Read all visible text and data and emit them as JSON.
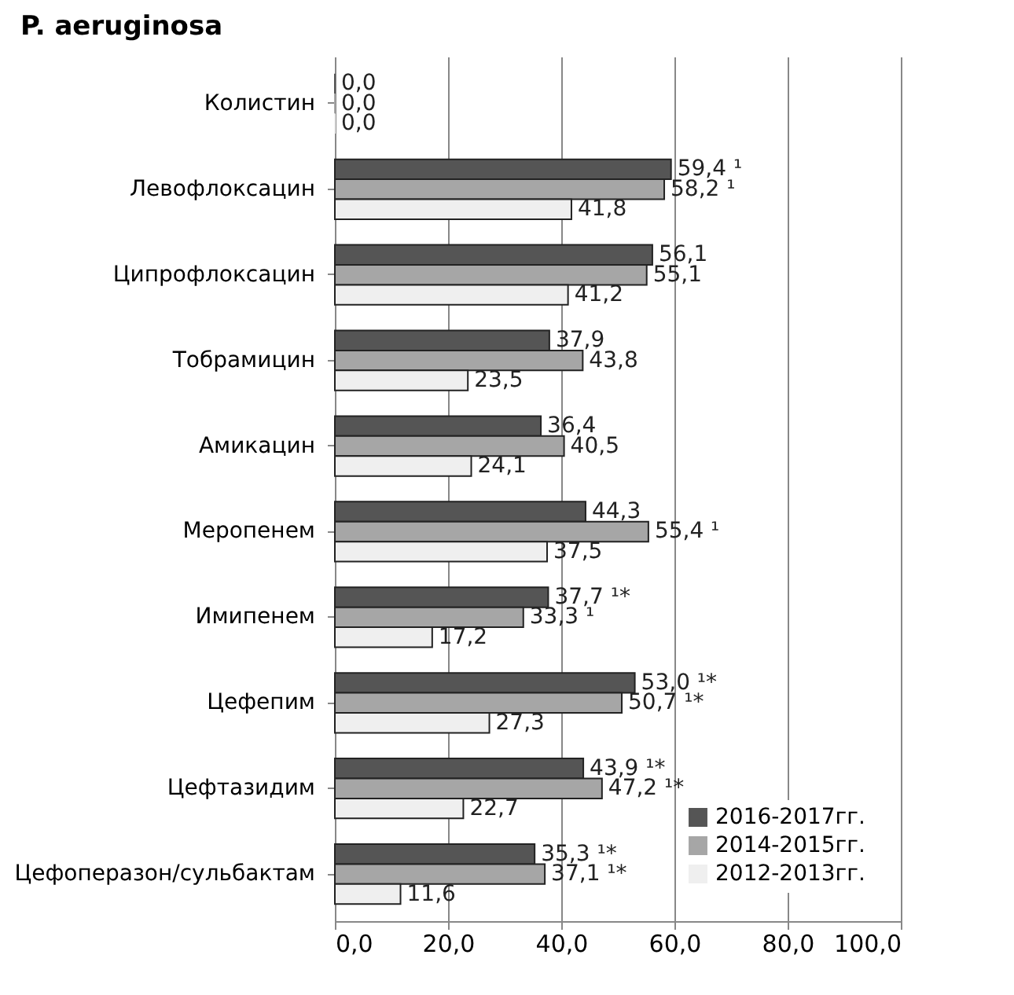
{
  "chart_data": {
    "type": "bar",
    "orientation": "horizontal",
    "title": "P. aeruginosa",
    "categories": [
      "Колистин",
      "Левофлоксацин",
      "Ципрофлоксацин",
      "Тобрамицин",
      "Амикацин",
      "Меропенем",
      "Имипенем",
      "Цефепим",
      "Цефтазидим",
      "Цефоперазон/сульбактам"
    ],
    "series": [
      {
        "name": "2016-2017гг.",
        "color": "#555555",
        "values": [
          0.0,
          59.4,
          56.1,
          37.9,
          36.4,
          44.3,
          37.7,
          53.0,
          43.9,
          35.3
        ],
        "value_labels": [
          "0,0",
          "59,4 ¹",
          "56,1",
          "37,9",
          "36,4",
          "44,3",
          "37,7 ¹*",
          "53,0 ¹*",
          "43,9 ¹*",
          "35,3 ¹*"
        ]
      },
      {
        "name": "2014-2015гг.",
        "color": "#a6a6a6",
        "values": [
          0.0,
          58.2,
          55.1,
          43.8,
          40.5,
          55.4,
          33.3,
          50.7,
          47.2,
          37.1
        ],
        "value_labels": [
          "0,0",
          "58,2 ¹",
          "55,1",
          "43,8",
          "40,5",
          "55,4 ¹",
          "33,3 ¹",
          "50,7 ¹*",
          "47,2 ¹*",
          "37,1 ¹*"
        ]
      },
      {
        "name": "2012-2013гг.",
        "color": "#efefef",
        "values": [
          0.0,
          41.8,
          41.2,
          23.5,
          24.1,
          37.5,
          17.2,
          27.3,
          22.7,
          11.6
        ],
        "value_labels": [
          "0,0",
          "41,8",
          "41,2",
          "23,5",
          "24,1",
          "37,5",
          "17,2",
          "27,3",
          "22,7",
          "11,6"
        ]
      }
    ],
    "xlim": [
      0,
      100
    ],
    "xticks": [
      {
        "value": 0,
        "label": "0,0"
      },
      {
        "value": 20,
        "label": "20,0"
      },
      {
        "value": 40,
        "label": "40,0"
      },
      {
        "value": 60,
        "label": "60,0"
      },
      {
        "value": 80,
        "label": "80,0"
      },
      {
        "value": 100,
        "label": "100,0"
      }
    ],
    "grid": "x",
    "legend": "bottom right"
  }
}
